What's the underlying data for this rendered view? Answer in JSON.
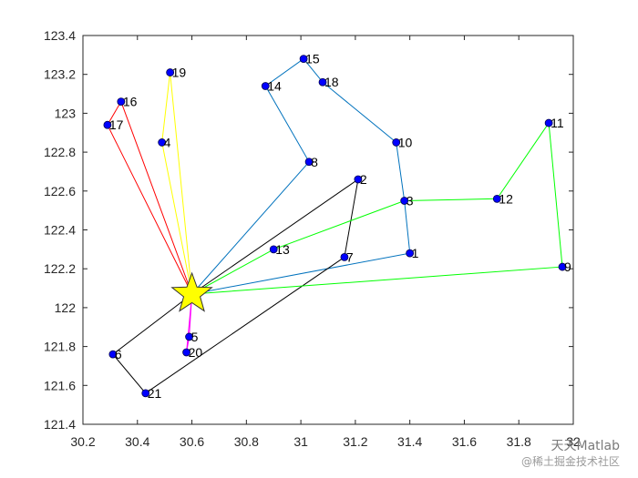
{
  "chart_data": {
    "type": "scatter",
    "title": "",
    "xlabel": "",
    "ylabel": "",
    "xlim": [
      30.2,
      32
    ],
    "ylim": [
      121.4,
      123.4
    ],
    "xticks": [
      "30.2",
      "30.4",
      "30.6",
      "30.8",
      "31",
      "31.2",
      "31.4",
      "31.6",
      "31.8",
      "32"
    ],
    "yticks": [
      "121.4",
      "121.6",
      "121.8",
      "122",
      "122.2",
      "122.4",
      "122.6",
      "122.8",
      "123",
      "123.2",
      "123.4"
    ],
    "depot": {
      "x": 30.6,
      "y": 122.07,
      "marker": "star",
      "color": "#ffff00"
    },
    "points": [
      {
        "label": "1",
        "x": 31.4,
        "y": 122.28
      },
      {
        "label": "2",
        "x": 31.21,
        "y": 122.66
      },
      {
        "label": "3",
        "x": 31.38,
        "y": 122.55
      },
      {
        "label": "4",
        "x": 30.49,
        "y": 122.85
      },
      {
        "label": "5",
        "x": 30.59,
        "y": 121.85
      },
      {
        "label": "6",
        "x": 30.31,
        "y": 121.76
      },
      {
        "label": "7",
        "x": 31.16,
        "y": 122.26
      },
      {
        "label": "8",
        "x": 31.03,
        "y": 122.75
      },
      {
        "label": "9",
        "x": 31.96,
        "y": 122.21
      },
      {
        "label": "10",
        "x": 31.35,
        "y": 122.85
      },
      {
        "label": "11",
        "x": 31.91,
        "y": 122.95
      },
      {
        "label": "12",
        "x": 31.72,
        "y": 122.56
      },
      {
        "label": "13",
        "x": 30.9,
        "y": 122.3
      },
      {
        "label": "14",
        "x": 30.87,
        "y": 123.14
      },
      {
        "label": "15",
        "x": 31.01,
        "y": 123.28
      },
      {
        "label": "16",
        "x": 30.34,
        "y": 123.06
      },
      {
        "label": "17",
        "x": 30.29,
        "y": 122.94
      },
      {
        "label": "18",
        "x": 31.08,
        "y": 123.16
      },
      {
        "label": "19",
        "x": 30.52,
        "y": 123.21
      },
      {
        "label": "20",
        "x": 30.58,
        "y": 121.77
      },
      {
        "label": "21",
        "x": 30.43,
        "y": 121.56
      }
    ],
    "series": [
      {
        "color": "#0072bd",
        "route": [
          0,
          8,
          14,
          15,
          18,
          10,
          3,
          1,
          0
        ]
      },
      {
        "color": "#000000",
        "route": [
          0,
          2,
          7,
          21,
          6,
          0
        ]
      },
      {
        "color": "#00ff00",
        "route": [
          0,
          13,
          3,
          12,
          11,
          9,
          0
        ]
      },
      {
        "color": "#ff0000",
        "route": [
          0,
          17,
          16,
          0
        ]
      },
      {
        "color": "#ffff00",
        "route": [
          0,
          4,
          19,
          0
        ]
      },
      {
        "color": "#ff00ff",
        "route": [
          0,
          5,
          20,
          0
        ]
      }
    ],
    "marker_color": "#0000ff",
    "grid": false,
    "legend": "none"
  },
  "watermark": {
    "line1": "天天Matlab",
    "line2": "@稀土掘金技术社区"
  }
}
